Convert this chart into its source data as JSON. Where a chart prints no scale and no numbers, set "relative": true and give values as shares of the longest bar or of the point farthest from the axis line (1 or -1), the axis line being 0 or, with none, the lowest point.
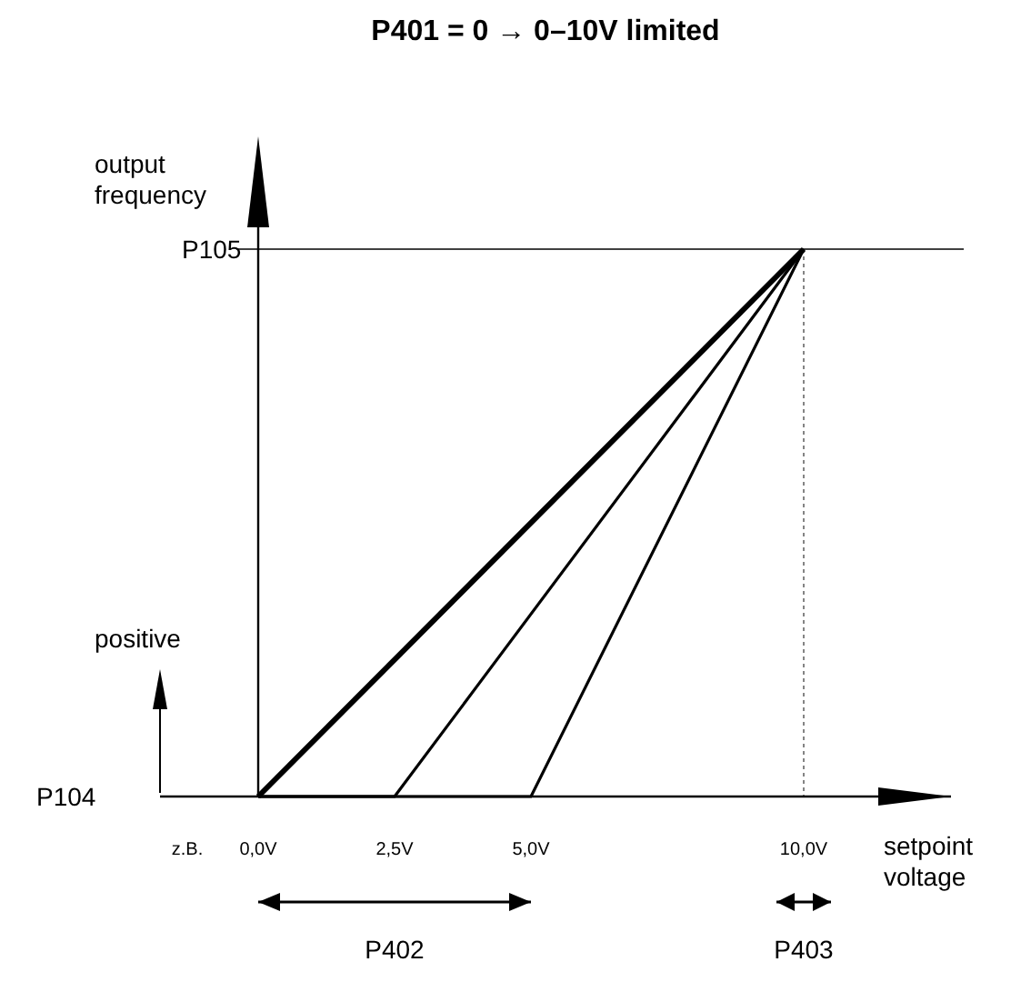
{
  "chart_data": {
    "type": "line",
    "title": "P401 = 0 → 0–10V limited",
    "xlabel": "setpoint voltage",
    "ylabel": "output frequency",
    "relative": true,
    "xlim": [
      -1.8,
      12.7
    ],
    "xticks": [
      {
        "value": 0,
        "label": "0,0V"
      },
      {
        "value": 2.5,
        "label": "2,5V"
      },
      {
        "value": 5,
        "label": "5,0V"
      },
      {
        "value": 10,
        "label": "10,0V"
      }
    ],
    "series": [
      {
        "color": "#000000",
        "x": [
          0,
          10
        ],
        "values": [
          0,
          1
        ]
      },
      {
        "color": "#000000",
        "x": [
          0,
          2.5,
          10
        ],
        "values": [
          0,
          0,
          1
        ]
      },
      {
        "color": "#000000",
        "x": [
          0,
          5,
          10
        ],
        "values": [
          0,
          0,
          1
        ]
      }
    ],
    "ref_lines": [
      {
        "axis": "y",
        "value": 1,
        "label": "P105"
      },
      {
        "axis": "x",
        "value": 10,
        "label": null,
        "line_style": "dotted"
      }
    ],
    "annotations": [
      "z.B.",
      "positive",
      "P402",
      "P403",
      "P104"
    ],
    "line_style": "solid"
  }
}
